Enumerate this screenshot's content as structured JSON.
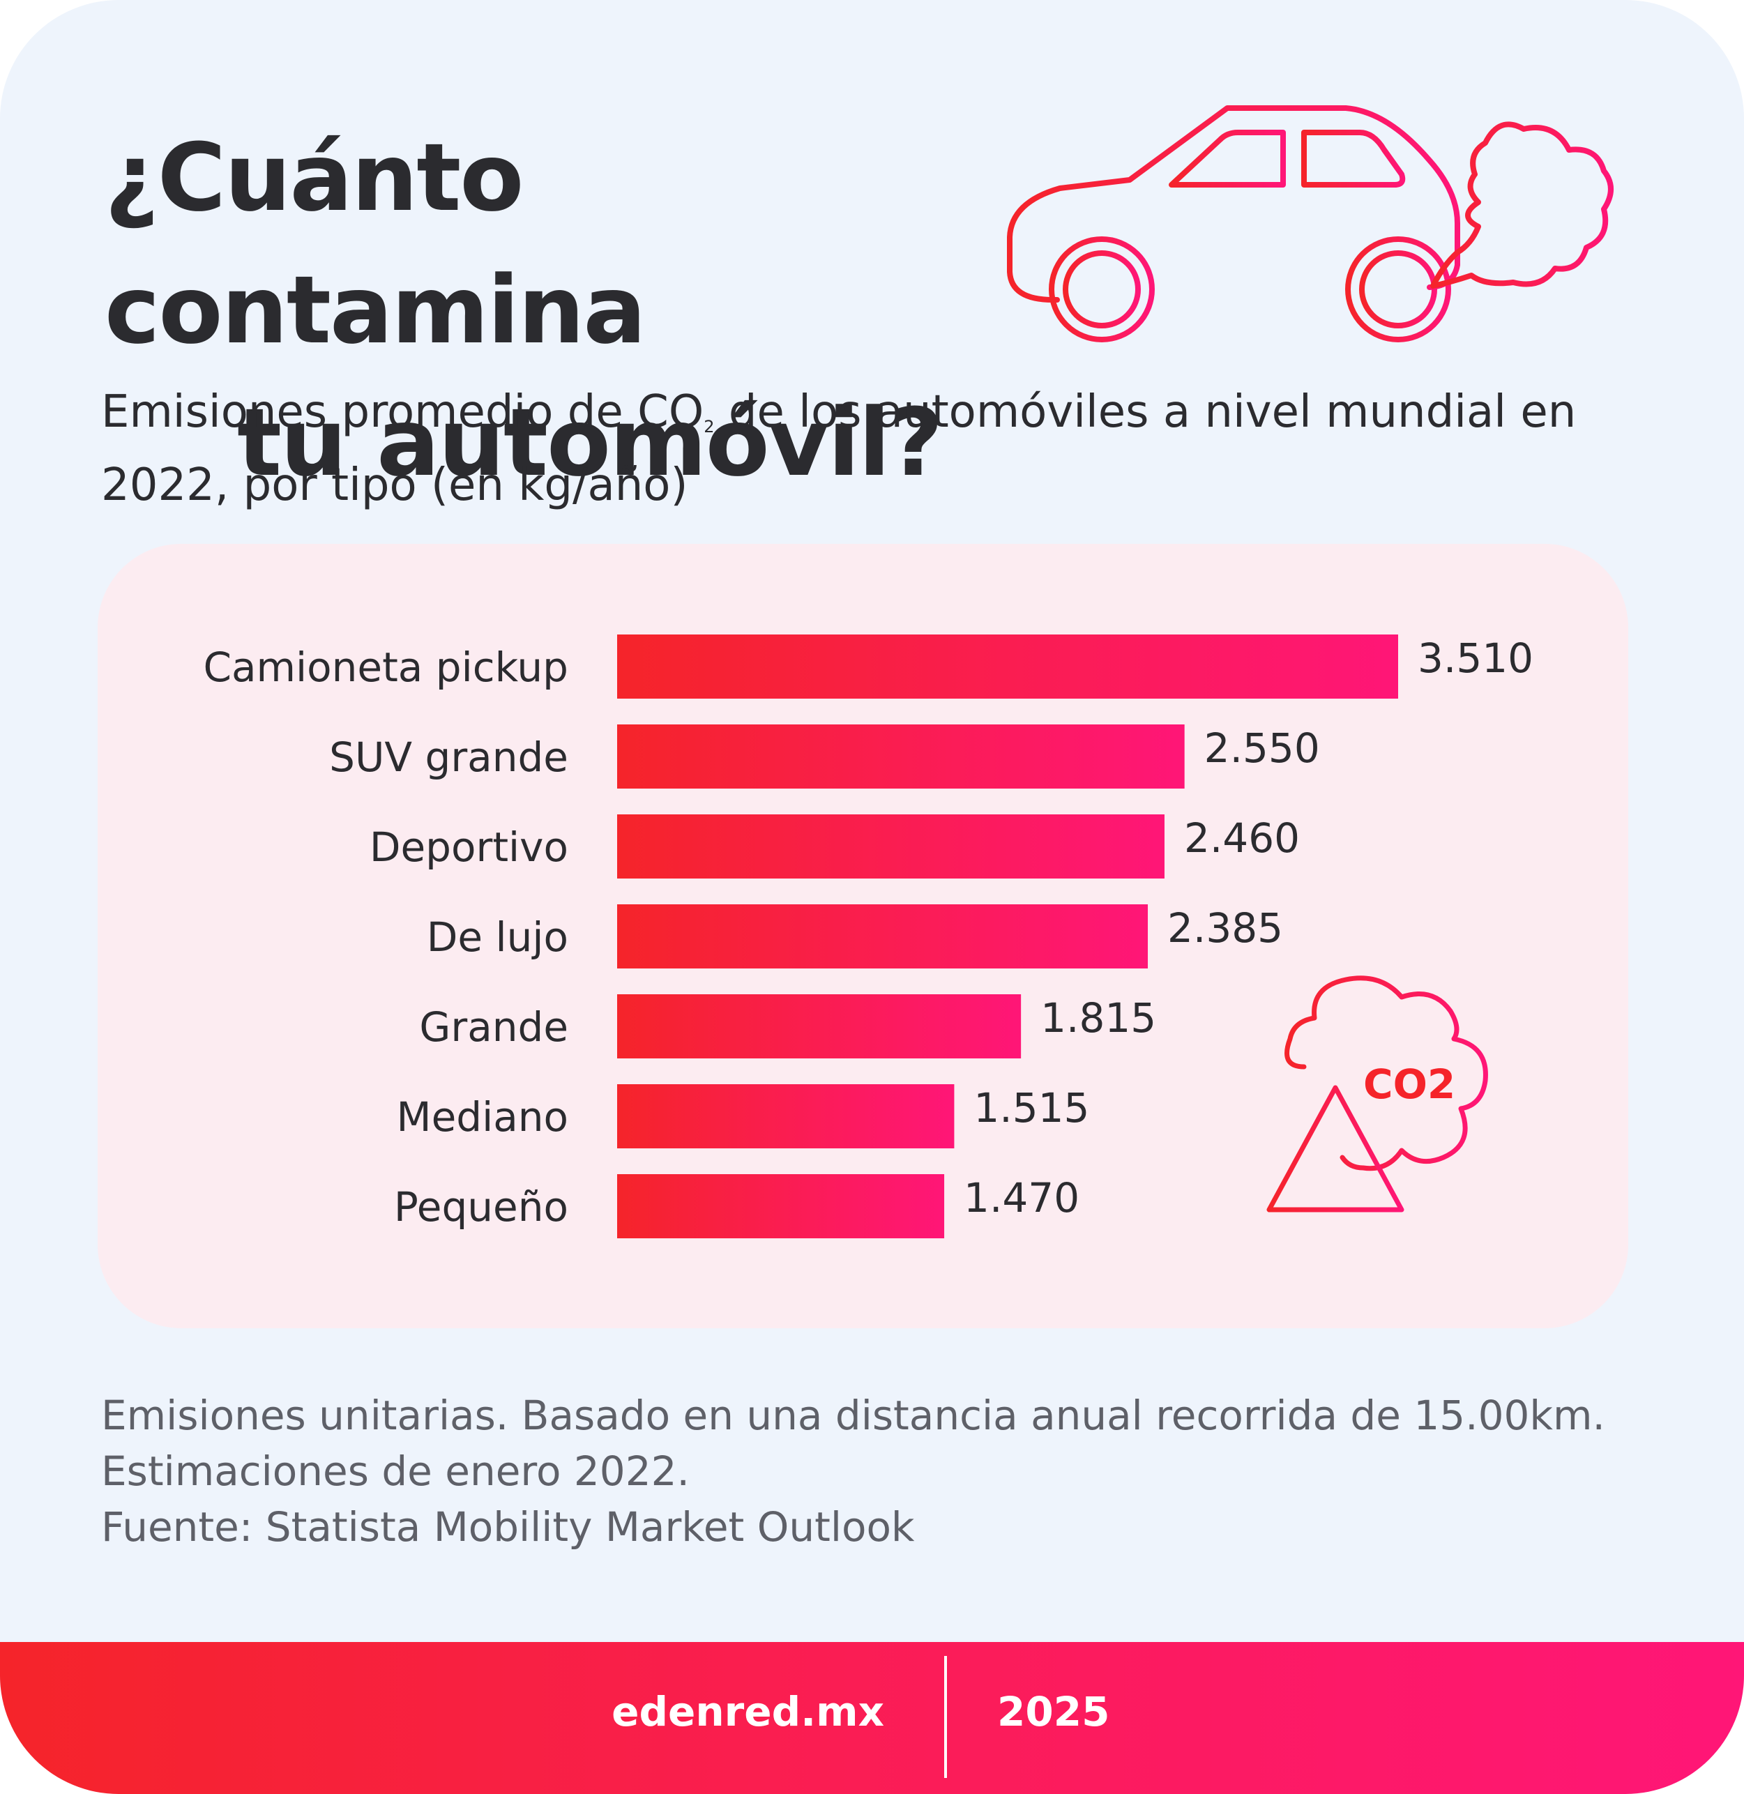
{
  "title": {
    "line1": "¿Cuánto contamina",
    "line2": "tu automóvil?"
  },
  "subtitle": {
    "part1": "Emisiones promedio de CO",
    "subscript": "2",
    "part2": " de los automóviles a nivel mundial en 2022, por tipo (en kg/año)"
  },
  "icons": {
    "car": "car-exhaust-icon",
    "warning": "co2-warning-icon",
    "co2_label": "CO2"
  },
  "colors": {
    "accent_start": "#f5242a",
    "accent_end": "#ff1677",
    "panel": "#fcecf1",
    "background": "#eef4fc"
  },
  "chart_data": {
    "type": "bar",
    "orientation": "horizontal",
    "categories": [
      "Camioneta pickup",
      "SUV grande",
      "Deportivo",
      "De lujo",
      "Grande",
      "Mediano",
      "Pequeño"
    ],
    "values": [
      3510,
      2550,
      2460,
      2385,
      1815,
      1515,
      1470
    ],
    "value_labels": [
      "3.510",
      "2.550",
      "2.460",
      "2.385",
      "1.815",
      "1.515",
      "1.470"
    ],
    "xlim": [
      0,
      3510
    ],
    "grid": false,
    "legend": "none"
  },
  "footnote": {
    "line1": "Emisiones unitarias. Basado en una distancia anual recorrida de 15.00km.",
    "line2": "Estimaciones de enero 2022.",
    "line3": "Fuente: Statista Mobility Market Outlook"
  },
  "footer": {
    "site": "edenred.mx",
    "year": "2025"
  }
}
